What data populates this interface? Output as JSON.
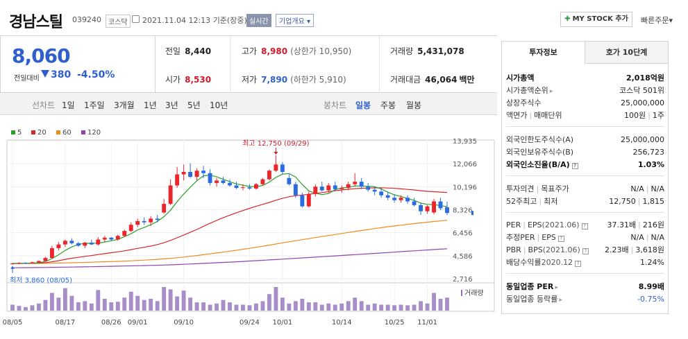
{
  "header": {
    "company": "경남스틸",
    "code": "039240",
    "market": "코스닥",
    "datetime": "2021.11.04 12:13",
    "basis": "기준(장중)",
    "realtime": "실시간",
    "company_info": "기업개요",
    "mystock": "MY STOCK 추가",
    "quick_order": "빠른주문"
  },
  "price": {
    "current": "8,060",
    "change_label": "전일대비",
    "change": "380",
    "change_pct": "-4.50%"
  },
  "quote": {
    "prev_label": "전일",
    "prev": "8,440",
    "open_label": "시가",
    "open": "8,530",
    "high_label": "고가",
    "high": "8,980",
    "upper_limit": "(상한가 10,950)",
    "low_label": "저가",
    "low": "7,890",
    "lower_limit": "(하한가 5,910)",
    "volume_label": "거래량",
    "volume": "5,431,078",
    "amount_label": "거래대금",
    "amount": "46,064",
    "amount_unit": "백만"
  },
  "toolbar": {
    "line_chart": "선차트",
    "periods": [
      "1일",
      "1주일",
      "3개월",
      "1년",
      "3년",
      "5년",
      "10년"
    ],
    "candle_chart": "봉차트",
    "candle_periods": [
      "일봉",
      "주봉",
      "월봉"
    ],
    "candle_active": "일봉"
  },
  "chart_data": {
    "type": "candlestick",
    "moving_averages": [
      {
        "name": "5",
        "color": "#2aa02a"
      },
      {
        "name": "20",
        "color": "#d62728"
      },
      {
        "name": "60",
        "color": "#f08a1c"
      },
      {
        "name": "120",
        "color": "#8e44ad"
      }
    ],
    "y_ticks": [
      "13,935",
      "12,066",
      "10,196",
      "8,326",
      "6,456",
      "4,586",
      "2,716"
    ],
    "x_ticks": [
      "08/05",
      "08/17",
      "08/26",
      "09/01",
      "09/10",
      "09/24",
      "10/01",
      "10/14",
      "10/25",
      "11/01"
    ],
    "ylim": [
      2716,
      13935
    ],
    "high_annotation": "최고 12,750 (09/29)",
    "low_annotation": "최저 3,860 (08/05)",
    "volume_label": "거래량",
    "candles": [
      {
        "o": 3900,
        "h": 4000,
        "l": 3860,
        "c": 3950
      },
      {
        "o": 3950,
        "h": 4050,
        "l": 3900,
        "c": 4000
      },
      {
        "o": 4000,
        "h": 4050,
        "l": 3920,
        "c": 3960
      },
      {
        "o": 3960,
        "h": 4100,
        "l": 3950,
        "c": 4050
      },
      {
        "o": 4050,
        "h": 4200,
        "l": 4000,
        "c": 4150
      },
      {
        "o": 4150,
        "h": 4500,
        "l": 4100,
        "c": 4400
      },
      {
        "o": 4400,
        "h": 5400,
        "l": 4350,
        "c": 5200
      },
      {
        "o": 5200,
        "h": 5700,
        "l": 5000,
        "c": 5500
      },
      {
        "o": 5500,
        "h": 5900,
        "l": 5300,
        "c": 5800
      },
      {
        "o": 5800,
        "h": 6000,
        "l": 5500,
        "c": 5600
      },
      {
        "o": 5600,
        "h": 5700,
        "l": 5300,
        "c": 5400
      },
      {
        "o": 5400,
        "h": 5700,
        "l": 5200,
        "c": 5650
      },
      {
        "o": 5650,
        "h": 5900,
        "l": 5450,
        "c": 5500
      },
      {
        "o": 5500,
        "h": 6100,
        "l": 5400,
        "c": 5900
      },
      {
        "o": 5900,
        "h": 6200,
        "l": 5700,
        "c": 6050
      },
      {
        "o": 6050,
        "h": 6100,
        "l": 5800,
        "c": 5900
      },
      {
        "o": 5900,
        "h": 6300,
        "l": 5800,
        "c": 6200
      },
      {
        "o": 6200,
        "h": 6700,
        "l": 6100,
        "c": 6600
      },
      {
        "o": 6600,
        "h": 7300,
        "l": 6500,
        "c": 7100
      },
      {
        "o": 7100,
        "h": 7600,
        "l": 6900,
        "c": 7400
      },
      {
        "o": 7400,
        "h": 7700,
        "l": 7100,
        "c": 7300
      },
      {
        "o": 7300,
        "h": 7800,
        "l": 7000,
        "c": 7600
      },
      {
        "o": 7600,
        "h": 7900,
        "l": 7300,
        "c": 7500
      },
      {
        "o": 8100,
        "h": 9200,
        "l": 8000,
        "c": 8800
      },
      {
        "o": 8800,
        "h": 10800,
        "l": 8700,
        "c": 10300
      },
      {
        "o": 10300,
        "h": 11800,
        "l": 10100,
        "c": 11200
      },
      {
        "o": 11200,
        "h": 12000,
        "l": 10700,
        "c": 11400
      },
      {
        "o": 11400,
        "h": 12100,
        "l": 10900,
        "c": 11000
      },
      {
        "o": 11000,
        "h": 11700,
        "l": 10700,
        "c": 11500
      },
      {
        "o": 11500,
        "h": 11900,
        "l": 10900,
        "c": 11300
      },
      {
        "o": 11300,
        "h": 11600,
        "l": 10300,
        "c": 10500
      },
      {
        "o": 10500,
        "h": 10900,
        "l": 10200,
        "c": 10700
      },
      {
        "o": 10700,
        "h": 11000,
        "l": 10400,
        "c": 10500
      },
      {
        "o": 10500,
        "h": 10800,
        "l": 10200,
        "c": 10300
      },
      {
        "o": 10300,
        "h": 10600,
        "l": 10000,
        "c": 10100
      },
      {
        "o": 10100,
        "h": 10400,
        "l": 9900,
        "c": 10150
      },
      {
        "o": 10150,
        "h": 10400,
        "l": 9950,
        "c": 10050
      },
      {
        "o": 10050,
        "h": 10500,
        "l": 9950,
        "c": 10400
      },
      {
        "o": 10400,
        "h": 10900,
        "l": 10300,
        "c": 10800
      },
      {
        "o": 10800,
        "h": 11600,
        "l": 10700,
        "c": 11500
      },
      {
        "o": 11500,
        "h": 12750,
        "l": 11400,
        "c": 12000
      },
      {
        "o": 12000,
        "h": 12200,
        "l": 11200,
        "c": 11400
      },
      {
        "o": 10900,
        "h": 11200,
        "l": 10300,
        "c": 10400
      },
      {
        "o": 10400,
        "h": 10600,
        "l": 9300,
        "c": 9500
      },
      {
        "o": 9500,
        "h": 9700,
        "l": 8500,
        "c": 8600
      },
      {
        "o": 8600,
        "h": 9800,
        "l": 8500,
        "c": 9600
      },
      {
        "o": 9600,
        "h": 10400,
        "l": 9400,
        "c": 10200
      },
      {
        "o": 10200,
        "h": 10600,
        "l": 9800,
        "c": 9900
      },
      {
        "o": 9900,
        "h": 10500,
        "l": 9700,
        "c": 10300
      },
      {
        "o": 10300,
        "h": 10600,
        "l": 9900,
        "c": 10000
      },
      {
        "o": 10000,
        "h": 10300,
        "l": 9700,
        "c": 10100
      },
      {
        "o": 10100,
        "h": 10600,
        "l": 9900,
        "c": 10400
      },
      {
        "o": 10400,
        "h": 11300,
        "l": 10200,
        "c": 10600
      },
      {
        "o": 10600,
        "h": 10900,
        "l": 10000,
        "c": 10200
      },
      {
        "o": 10200,
        "h": 10500,
        "l": 9800,
        "c": 9950
      },
      {
        "o": 9950,
        "h": 10200,
        "l": 9500,
        "c": 9800
      },
      {
        "o": 9800,
        "h": 10100,
        "l": 9300,
        "c": 9500
      },
      {
        "o": 9500,
        "h": 9800,
        "l": 9100,
        "c": 9300
      },
      {
        "o": 9300,
        "h": 9600,
        "l": 8900,
        "c": 9100
      },
      {
        "o": 9100,
        "h": 9500,
        "l": 8900,
        "c": 9300
      },
      {
        "o": 9300,
        "h": 9500,
        "l": 8800,
        "c": 9000
      },
      {
        "o": 9000,
        "h": 9300,
        "l": 8600,
        "c": 8700
      },
      {
        "o": 8700,
        "h": 8900,
        "l": 7900,
        "c": 8200
      },
      {
        "o": 8200,
        "h": 8700,
        "l": 8000,
        "c": 8600
      },
      {
        "o": 8100,
        "h": 9200,
        "l": 7950,
        "c": 9000
      },
      {
        "o": 9000,
        "h": 9300,
        "l": 8300,
        "c": 8440
      },
      {
        "o": 8530,
        "h": 8980,
        "l": 7890,
        "c": 8060
      }
    ],
    "volumes": [
      10,
      8,
      6,
      9,
      12,
      18,
      30,
      22,
      38,
      25,
      14,
      16,
      12,
      35,
      20,
      14,
      15,
      22,
      32,
      25,
      18,
      20,
      16,
      40,
      36,
      24,
      34,
      22,
      14,
      14,
      10,
      12,
      18,
      14,
      10,
      10,
      9,
      12,
      16,
      28,
      40,
      22,
      12,
      16,
      20,
      14,
      14,
      10,
      12,
      10,
      12,
      16,
      22,
      16,
      10,
      12,
      10,
      10,
      9,
      10,
      9,
      10,
      16,
      12,
      30,
      20,
      22
    ],
    "ma5": [
      3950,
      3965,
      3970,
      3980,
      4020,
      4110,
      4350,
      4660,
      5010,
      5300,
      5500,
      5590,
      5590,
      5610,
      5700,
      5800,
      5910,
      6130,
      6370,
      6680,
      6880,
      7100,
      7380,
      7760,
      8280,
      8980,
      9600,
      10150,
      10680,
      11080,
      11140,
      11000,
      10800,
      10600,
      10420,
      10320,
      10220,
      10200,
      10300,
      10570,
      10950,
      11220,
      11260,
      10980,
      10380,
      9860,
      9660,
      9560,
      9640,
      9960,
      10100,
      10140,
      10260,
      10250,
      10230,
      10190,
      10010,
      9750,
      9530,
      9400,
      9240,
      9080,
      8860,
      8760,
      8740,
      8660,
      8580
    ],
    "ma20": [
      3950,
      3955,
      3960,
      3968,
      3985,
      4010,
      4090,
      4180,
      4290,
      4380,
      4450,
      4530,
      4600,
      4680,
      4750,
      4830,
      4900,
      4980,
      5080,
      5180,
      5270,
      5370,
      5490,
      5640,
      5830,
      6040,
      6260,
      6490,
      6720,
      6980,
      7220,
      7450,
      7680,
      7880,
      8080,
      8260,
      8440,
      8600,
      8760,
      8920,
      9100,
      9250,
      9380,
      9470,
      9520,
      9580,
      9650,
      9720,
      9790,
      9870,
      9930,
      9990,
      10040,
      10070,
      10090,
      10100,
      10110,
      10090,
      10060,
      10020,
      9980,
      9930,
      9870,
      9820,
      9790,
      9760,
      9730
    ],
    "ma60": [
      3950,
      3952,
      3954,
      3957,
      3961,
      3966,
      3975,
      3986,
      4000,
      4014,
      4028,
      4043,
      4058,
      4074,
      4090,
      4108,
      4127,
      4148,
      4172,
      4198,
      4225,
      4255,
      4288,
      4326,
      4370,
      4420,
      4475,
      4535,
      4598,
      4665,
      4735,
      4805,
      4878,
      4953,
      5030,
      5108,
      5188,
      5270,
      5355,
      5442,
      5535,
      5628,
      5718,
      5805,
      5888,
      5972,
      6058,
      6142,
      6226,
      6310,
      6392,
      6474,
      6556,
      6636,
      6714,
      6790,
      6864,
      6936,
      7004,
      7070,
      7134,
      7196,
      7254,
      7310,
      7366,
      7420,
      7472
    ],
    "ma120": [
      3600,
      3606,
      3612,
      3618,
      3624,
      3630,
      3638,
      3646,
      3655,
      3664,
      3673,
      3682,
      3692,
      3702,
      3712,
      3723,
      3734,
      3745,
      3757,
      3770,
      3783,
      3797,
      3812,
      3828,
      3846,
      3866,
      3888,
      3911,
      3935,
      3960,
      3986,
      4012,
      4039,
      4066,
      4094,
      4122,
      4151,
      4180,
      4210,
      4241,
      4273,
      4306,
      4339,
      4372,
      4405,
      4438,
      4471,
      4504,
      4538,
      4572,
      4606,
      4640,
      4674,
      4708,
      4742,
      4776,
      4810,
      4844,
      4878,
      4912,
      4946,
      4980,
      5014,
      5048,
      5082,
      5116,
      5150
    ]
  },
  "panel": {
    "tab_info": "투자정보",
    "tab_orderbook": "호가 10단계",
    "rows": [
      {
        "l": "시가총액",
        "r": "2,018억원",
        "bold": true
      },
      {
        "l": "시가총액순위",
        "r": "코스닥 501위",
        "arrow": true
      },
      {
        "l": "상장주식수",
        "r": "25,000,000"
      },
      {
        "l": "액면가",
        "l2": "매매단위",
        "r": "100원",
        "r2": "1주"
      },
      {
        "l": "외국인한도주식수(A)",
        "r": "25,000,000"
      },
      {
        "l": "외국인보유주식수(B)",
        "r": "256,723"
      },
      {
        "l": "외국인소진율(B/A)",
        "r": "1.03%",
        "bold": true,
        "help": true
      },
      {
        "l": "투자의견",
        "l2": "목표주가",
        "r": "N/A",
        "r2": "N/A"
      },
      {
        "l": "52주최고",
        "l2": "최저",
        "r": "12,750",
        "r2": "1,815"
      },
      {
        "l": "PER",
        "l2": "EPS",
        "sub": "(2021.06)",
        "help": true,
        "r": "37.31배",
        "r2": "216원"
      },
      {
        "l": "추정PER",
        "l2": "EPS",
        "help": true,
        "r": "N/A",
        "r2": "N/A"
      },
      {
        "l": "PBR",
        "l2": "BPS",
        "sub": "(2021.06)",
        "help": true,
        "r": "2.23배",
        "r2": "3,618원"
      },
      {
        "l": "배당수익률",
        "sub": "2020.12",
        "help": true,
        "r": "1.24%"
      },
      {
        "l": "동일업종 PER",
        "r": "8.99배",
        "bold": true,
        "arrow": true
      },
      {
        "l": "동일업종 등락률",
        "r": "-0.75%",
        "arrow": true,
        "down": true
      }
    ]
  }
}
